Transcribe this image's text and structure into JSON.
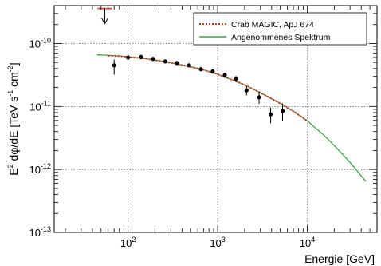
{
  "chart_data": {
    "type": "scatter",
    "title": "",
    "xlabel": "Energie [GeV]",
    "ylabel_parts": {
      "e": "E",
      "e_sup": "2",
      "mid": " dφ/dE  [TeV s",
      "s_sup": "-1",
      "cm": " cm",
      "cm_sup": "-2",
      "end": "]"
    },
    "x_scale": "log",
    "y_scale": "log",
    "xlim": [
      15,
      60000
    ],
    "ylim": [
      1e-13,
      4e-10
    ],
    "grid": true,
    "legend_position": "top-right",
    "x_ticks": [
      {
        "value": 100,
        "base": "10",
        "exp": "2"
      },
      {
        "value": 1000,
        "base": "10",
        "exp": "3"
      },
      {
        "value": 10000,
        "base": "10",
        "exp": "4"
      }
    ],
    "y_ticks": [
      {
        "value": 1e-10,
        "base": "10",
        "exp": "-10"
      },
      {
        "value": 1e-11,
        "base": "10",
        "exp": "-11"
      },
      {
        "value": 1e-12,
        "base": "10",
        "exp": "-12"
      },
      {
        "value": 1e-13,
        "base": "10",
        "exp": "-13"
      }
    ],
    "series": [
      {
        "name": "Crab MAGIC, ApJ 674",
        "kind": "line",
        "color": "#e8312a",
        "dashed": true,
        "x": [
          60,
          80,
          100,
          150,
          200,
          300,
          500,
          700,
          1000,
          1500,
          2000,
          3000,
          5000,
          7000,
          10000
        ],
        "y": [
          6.4e-11,
          6.3e-11,
          6.1e-11,
          5.8e-11,
          5.45e-11,
          4.95e-11,
          4.25e-11,
          3.8e-11,
          3.25e-11,
          2.6e-11,
          2.2e-11,
          1.65e-11,
          1.12e-11,
          8.4e-12,
          5.9e-12
        ]
      },
      {
        "name": "Angenommenes Spektrum",
        "kind": "line",
        "color": "#3aa642",
        "dashed": false,
        "x": [
          45,
          60,
          80,
          100,
          150,
          200,
          300,
          500,
          700,
          1000,
          1500,
          2000,
          3000,
          5000,
          7000,
          10000,
          15000,
          20000,
          30000,
          45000
        ],
        "y": [
          6.6e-11,
          6.5e-11,
          6.35e-11,
          6.15e-11,
          5.8e-11,
          5.45e-11,
          4.95e-11,
          4.25e-11,
          3.8e-11,
          3.25e-11,
          2.6e-11,
          2.2e-11,
          1.65e-11,
          1.12e-11,
          8.4e-12,
          5.9e-12,
          3.6e-12,
          2.4e-12,
          1.3e-12,
          6.5e-13
        ]
      },
      {
        "name": "",
        "kind": "points",
        "color": "#000000",
        "x": [
          70,
          100,
          140,
          190,
          260,
          350,
          480,
          650,
          880,
          1200,
          1600,
          2100,
          2900,
          3900,
          5300
        ],
        "y": [
          4.5e-11,
          6e-11,
          6.1e-11,
          5.7e-11,
          5.2e-11,
          4.9e-11,
          4.5e-11,
          3.9e-11,
          3.6e-11,
          3.15e-11,
          2.75e-11,
          1.8e-11,
          1.4e-11,
          7.5e-12,
          8.5e-12
        ],
        "y_low": [
          3.2e-11,
          5.4e-11,
          5.6e-11,
          5.3e-11,
          4.85e-11,
          4.6e-11,
          4.2e-11,
          3.6e-11,
          3.3e-11,
          2.85e-11,
          2.45e-11,
          1.5e-11,
          1.1e-11,
          5.4e-12,
          5.8e-12
        ],
        "y_high": [
          5.6e-11,
          6.6e-11,
          6.6e-11,
          6.1e-11,
          5.55e-11,
          5.2e-11,
          4.8e-11,
          4.2e-11,
          3.9e-11,
          3.45e-11,
          3.05e-11,
          2.1e-11,
          1.7e-11,
          9.6e-12,
          1.12e-11
        ]
      }
    ],
    "upper_limit": {
      "x": 55,
      "y": 3.6e-10,
      "color": "#e8312a",
      "arrow_color": "#000000"
    }
  }
}
